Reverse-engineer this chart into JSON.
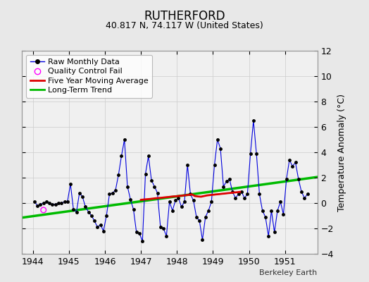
{
  "title": "RUTHERFORD",
  "subtitle": "40.817 N, 74.117 W (United States)",
  "ylabel": "Temperature Anomaly (°C)",
  "credit": "Berkeley Earth",
  "background_color": "#e8e8e8",
  "plot_bg_color": "#f0f0f0",
  "xlim": [
    1943.7,
    1951.9
  ],
  "ylim": [
    -4,
    12
  ],
  "yticks": [
    -4,
    -2,
    0,
    2,
    4,
    6,
    8,
    10,
    12
  ],
  "xticks": [
    1944,
    1945,
    1946,
    1947,
    1948,
    1949,
    1950,
    1951
  ],
  "raw_x": [
    1944.042,
    1944.125,
    1944.208,
    1944.292,
    1944.375,
    1944.458,
    1944.542,
    1944.625,
    1944.708,
    1944.792,
    1944.875,
    1944.958,
    1945.042,
    1945.125,
    1945.208,
    1945.292,
    1945.375,
    1945.458,
    1945.542,
    1945.625,
    1945.708,
    1945.792,
    1945.875,
    1945.958,
    1946.042,
    1946.125,
    1946.208,
    1946.292,
    1946.375,
    1946.458,
    1946.542,
    1946.625,
    1946.708,
    1946.792,
    1946.875,
    1946.958,
    1947.042,
    1947.125,
    1947.208,
    1947.292,
    1947.375,
    1947.458,
    1947.542,
    1947.625,
    1947.708,
    1947.792,
    1947.875,
    1947.958,
    1948.042,
    1948.125,
    1948.208,
    1948.292,
    1948.375,
    1948.458,
    1948.542,
    1948.625,
    1948.708,
    1948.792,
    1948.875,
    1948.958,
    1949.042,
    1949.125,
    1949.208,
    1949.292,
    1949.375,
    1949.458,
    1949.542,
    1949.625,
    1949.708,
    1949.792,
    1949.875,
    1949.958,
    1950.042,
    1950.125,
    1950.208,
    1950.292,
    1950.375,
    1950.458,
    1950.542,
    1950.625,
    1950.708,
    1950.792,
    1950.875,
    1950.958,
    1951.042,
    1951.125,
    1951.208,
    1951.292,
    1951.375,
    1951.458,
    1951.542,
    1951.625
  ],
  "raw_y": [
    0.1,
    -0.2,
    -0.1,
    0.0,
    0.1,
    0.0,
    -0.1,
    -0.1,
    0.0,
    0.0,
    0.1,
    0.1,
    1.5,
    -0.5,
    -0.7,
    0.8,
    0.5,
    -0.3,
    -0.7,
    -1.0,
    -1.4,
    -1.9,
    -1.7,
    -2.2,
    -1.0,
    0.7,
    0.8,
    1.0,
    2.2,
    3.7,
    5.0,
    1.3,
    0.3,
    -0.5,
    -2.3,
    -2.4,
    -3.0,
    2.3,
    3.7,
    1.8,
    1.3,
    0.8,
    -1.9,
    -2.0,
    -2.6,
    0.1,
    -0.6,
    0.2,
    0.4,
    -0.3,
    0.1,
    3.0,
    0.7,
    0.2,
    -1.1,
    -1.4,
    -2.9,
    -1.1,
    -0.6,
    0.1,
    3.0,
    5.0,
    4.3,
    1.3,
    1.7,
    1.9,
    0.9,
    0.4,
    0.7,
    0.9,
    0.4,
    0.7,
    3.9,
    6.5,
    3.9,
    0.7,
    -0.6,
    -1.1,
    -2.6,
    -0.6,
    -2.3,
    -0.6,
    0.1,
    -0.9,
    1.9,
    3.4,
    2.9,
    3.2,
    1.9,
    0.9,
    0.4,
    0.7
  ],
  "qc_fail_x": [
    1944.292
  ],
  "qc_fail_y": [
    -0.55
  ],
  "moving_avg_x": [
    1947.0,
    1947.083,
    1947.167,
    1947.25,
    1947.333,
    1947.417,
    1947.5,
    1947.583,
    1947.667,
    1947.75,
    1947.833,
    1947.917,
    1948.0,
    1948.083,
    1948.167,
    1948.25,
    1948.333,
    1948.417,
    1948.5,
    1948.583,
    1948.667,
    1948.75,
    1948.833,
    1948.917,
    1949.0,
    1949.083,
    1949.167,
    1949.25,
    1949.333,
    1949.417,
    1949.5,
    1949.583,
    1949.667,
    1949.75
  ],
  "moving_avg_y": [
    0.25,
    0.28,
    0.3,
    0.32,
    0.35,
    0.38,
    0.4,
    0.42,
    0.45,
    0.47,
    0.5,
    0.52,
    0.54,
    0.57,
    0.59,
    0.62,
    0.65,
    0.68,
    0.55,
    0.52,
    0.5,
    0.55,
    0.6,
    0.63,
    0.65,
    0.68,
    0.7,
    0.73,
    0.75,
    0.78,
    0.8,
    0.83,
    0.85,
    0.88
  ],
  "trend_x": [
    1943.7,
    1951.9
  ],
  "trend_y": [
    -1.15,
    2.05
  ],
  "raw_color": "#0000dd",
  "marker_color": "#000000",
  "moving_avg_color": "#dd0000",
  "trend_color": "#00bb00",
  "qc_color": "#ff00ff",
  "title_fontsize": 12,
  "subtitle_fontsize": 9,
  "tick_labelsize": 9,
  "ylabel_fontsize": 9,
  "legend_fontsize": 8,
  "credit_fontsize": 8
}
